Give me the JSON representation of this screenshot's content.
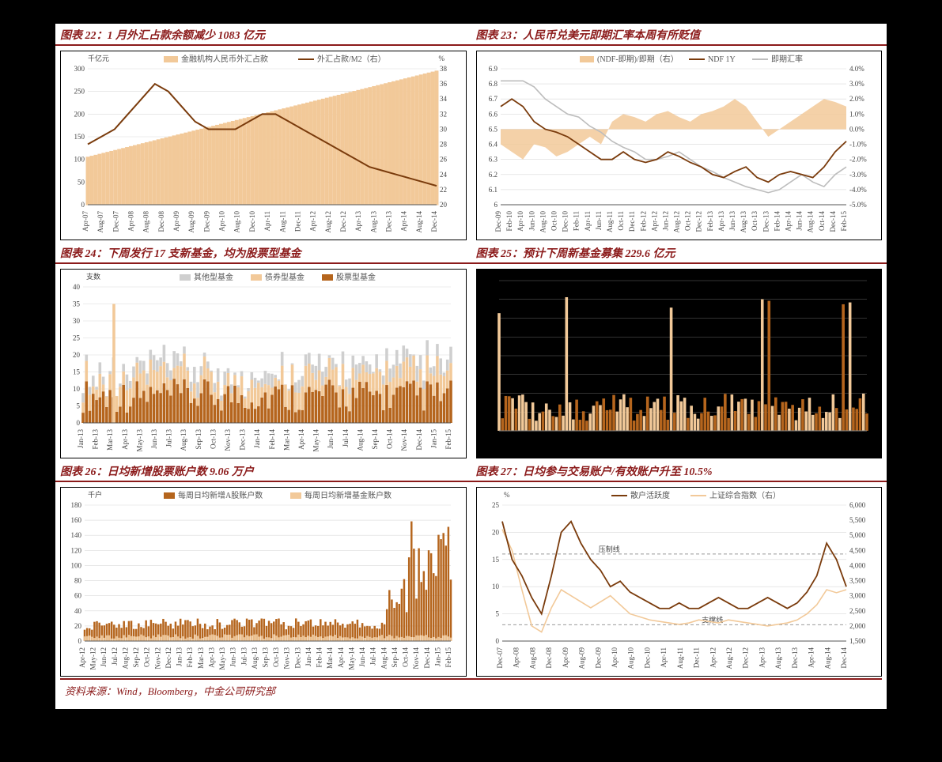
{
  "source_line": "资料来源：Wind，Bloomberg，中金公司研究部",
  "colors": {
    "accent": "#8b1a1a",
    "bar_light": "#f2c999",
    "bar_dark": "#b5651d",
    "line_dark": "#7a3b0c",
    "line_grey": "#bdbdbd",
    "grid": "#d9d9d9",
    "axis": "#555"
  },
  "charts": {
    "c22": {
      "title": "图表 22：1 月外汇占款余额减少 1083 亿元",
      "y_left_label": "千亿元",
      "y_right_label": "%",
      "legend": [
        "金融机构人民币外汇占款",
        "外汇占款/M2（右）"
      ],
      "y_left": {
        "min": 0,
        "max": 300,
        "step": 50
      },
      "y_right": {
        "min": 20,
        "max": 38,
        "step": 2
      },
      "x_ticks": [
        "Apr-07",
        "Aug-07",
        "Dec-07",
        "Apr-08",
        "Aug-08",
        "Dec-08",
        "Apr-09",
        "Aug-09",
        "Dec-09",
        "Apr-10",
        "Aug-10",
        "Dec-10",
        "Apr-11",
        "Aug-11",
        "Dec-11",
        "Apr-12",
        "Aug-12",
        "Dec-12",
        "Apr-13",
        "Aug-13",
        "Dec-13",
        "Apr-14",
        "Aug-14",
        "Dec-14"
      ],
      "bars": [
        105,
        110,
        115,
        125,
        135,
        145,
        150,
        155,
        160,
        165,
        175,
        185,
        195,
        205,
        215,
        225,
        230,
        235,
        245,
        250,
        260,
        270,
        280,
        290,
        295,
        295,
        293
      ],
      "line": [
        28,
        29,
        30,
        32,
        34,
        36,
        35,
        33,
        31,
        30,
        30,
        30,
        31,
        32,
        32,
        31,
        30,
        29,
        28,
        27,
        26,
        25,
        24.5,
        24,
        23.5,
        23,
        22.5
      ]
    },
    "c23": {
      "title": "图表 23：人民币兑美元即期汇率本周有所贬值",
      "legend": [
        "(NDF-即期)/即期（右）",
        "NDF 1Y",
        "即期汇率"
      ],
      "y_left": {
        "min": 6.0,
        "max": 6.9,
        "step": 0.1
      },
      "y_right": {
        "min": -5.0,
        "max": 4.0,
        "step": 1.0,
        "suffix": "%"
      },
      "x_ticks": [
        "Dec-09",
        "Feb-10",
        "Apr-10",
        "Jun-10",
        "Aug-10",
        "Oct-10",
        "Dec-10",
        "Feb-11",
        "Apr-11",
        "Jun-11",
        "Aug-11",
        "Oct-11",
        "Dec-11",
        "Feb-12",
        "Apr-12",
        "Jun-12",
        "Aug-12",
        "Oct-12",
        "Dec-12",
        "Feb-13",
        "Apr-13",
        "Jun-13",
        "Aug-13",
        "Oct-13",
        "Dec-13",
        "Feb-14",
        "Apr-14",
        "Jun-14",
        "Aug-14",
        "Oct-14",
        "Dec-14",
        "Feb-15"
      ],
      "area": [
        -1.0,
        -1.5,
        -2.0,
        -1.0,
        -1.2,
        -1.8,
        -1.5,
        -1.0,
        -0.5,
        -1.0,
        0.5,
        1.0,
        0.8,
        0.5,
        1.0,
        1.2,
        0.8,
        0.5,
        1.0,
        1.2,
        1.5,
        2.0,
        1.5,
        0.5,
        -0.5,
        0.0,
        0.5,
        1.0,
        1.5,
        2.0,
        1.8,
        1.5
      ],
      "line_ndf": [
        6.65,
        6.7,
        6.65,
        6.55,
        6.5,
        6.48,
        6.45,
        6.4,
        6.35,
        6.3,
        6.3,
        6.35,
        6.3,
        6.28,
        6.3,
        6.35,
        6.32,
        6.28,
        6.25,
        6.2,
        6.18,
        6.22,
        6.25,
        6.18,
        6.15,
        6.2,
        6.22,
        6.2,
        6.18,
        6.25,
        6.35,
        6.42
      ],
      "line_spot": [
        6.82,
        6.82,
        6.82,
        6.78,
        6.7,
        6.65,
        6.6,
        6.58,
        6.52,
        6.48,
        6.42,
        6.38,
        6.35,
        6.3,
        6.3,
        6.32,
        6.35,
        6.3,
        6.25,
        6.22,
        6.18,
        6.15,
        6.12,
        6.1,
        6.08,
        6.1,
        6.15,
        6.2,
        6.15,
        6.12,
        6.2,
        6.25
      ]
    },
    "c24": {
      "title": "图表 24：下周发行 17 支新基金，均为股票型基金",
      "y_label": "支数",
      "legend": [
        "其他型基金",
        "债券型基金",
        "股票型基金"
      ],
      "y": {
        "min": 0,
        "max": 40,
        "step": 5
      },
      "x_ticks": [
        "Jan-13",
        "Feb-13",
        "Mar-13",
        "Apr-13",
        "May-13",
        "Jun-13",
        "Jul-13",
        "Aug-13",
        "Sep-13",
        "Oct-13",
        "Nov-13",
        "Dec-13",
        "Jan-14",
        "Feb-14",
        "Mar-14",
        "Apr-14",
        "May-14",
        "Jun-14",
        "Jul-14",
        "Aug-14",
        "Sep-14",
        "Oct-14",
        "Nov-14",
        "Dec-14",
        "Jan-15",
        "Feb-15"
      ],
      "n_bars": 110
    },
    "c25": {
      "title": "图表 25：预计下周新基金募集 229.6 亿元",
      "y": {
        "min": 0,
        "max": 40,
        "step": 5
      },
      "n_bars": 110
    },
    "c26": {
      "title": "图表 26：日均新增股票账户数 9.06 万户",
      "y_label": "千户",
      "legend": [
        "每周日均新增A股账户数",
        "每周日均新增基金账户数"
      ],
      "y": {
        "min": 0,
        "max": 180,
        "step": 20
      },
      "x_ticks": [
        "Apr-12",
        "May-12",
        "Jun-12",
        "Jul-12",
        "Aug-12",
        "Sep-12",
        "Oct-12",
        "Nov-12",
        "Dec-12",
        "Jan-13",
        "Feb-13",
        "Mar-13",
        "Apr-13",
        "May-13",
        "Jun-13",
        "Jul-13",
        "Aug-13",
        "Sep-13",
        "Oct-13",
        "Nov-13",
        "Dec-13",
        "Jan-14",
        "Feb-14",
        "Mar-14",
        "Apr-14",
        "May-14",
        "Jun-14",
        "Jul-14",
        "Aug-14",
        "Sep-14",
        "Oct-14",
        "Nov-14",
        "Dec-14",
        "Jan-15",
        "Feb-15"
      ],
      "n_bars": 150
    },
    "c27": {
      "title": "图表 27：日均参与交易账户/有效账户升至 10.5%",
      "y_left_label": "%",
      "legend": [
        "散户活跃度",
        "上证综合指数（右）"
      ],
      "y_left": {
        "min": 0,
        "max": 25,
        "step": 5
      },
      "y_right": {
        "min": 1500,
        "max": 6000,
        "step": 500
      },
      "x_ticks": [
        "Dec-07",
        "Apr-08",
        "Aug-08",
        "Dec-08",
        "Apr-09",
        "Aug-09",
        "Dec-09",
        "Apr-10",
        "Aug-10",
        "Dec-10",
        "Apr-11",
        "Aug-11",
        "Dec-11",
        "Apr-12",
        "Aug-12",
        "Dec-12",
        "Apr-13",
        "Aug-13",
        "Dec-13",
        "Apr-14",
        "Aug-14",
        "Dec-14"
      ],
      "labels": {
        "resist": "压制线",
        "support": "支撑线"
      },
      "resist_y": 16,
      "support_y": 3,
      "line_act": [
        22,
        15,
        12,
        8,
        5,
        12,
        20,
        22,
        18,
        15,
        13,
        10,
        11,
        9,
        8,
        7,
        6,
        6,
        7,
        6,
        6,
        7,
        8,
        7,
        6,
        6,
        7,
        8,
        7,
        6,
        7,
        9,
        12,
        18,
        15,
        10
      ],
      "line_idx": [
        5200,
        4500,
        3200,
        2000,
        1800,
        2600,
        3200,
        3000,
        2800,
        2600,
        2800,
        3000,
        2700,
        2400,
        2300,
        2200,
        2150,
        2100,
        2050,
        2100,
        2200,
        2150,
        2100,
        2200,
        2150,
        2100,
        2050,
        2000,
        2050,
        2100,
        2200,
        2400,
        2700,
        3200,
        3100,
        3200
      ]
    }
  }
}
